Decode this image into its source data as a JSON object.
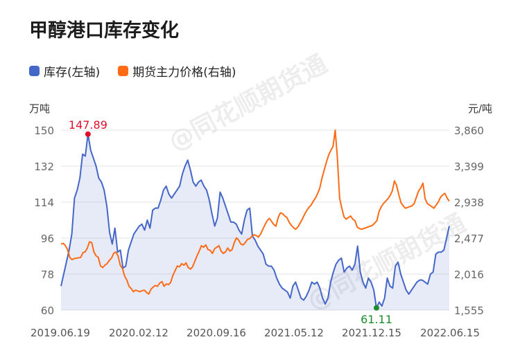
{
  "title": "甲醇港口库存变化",
  "legend": [
    {
      "label": "库存(左轴)",
      "color": "#4466c8"
    },
    {
      "label": "期货主力价格(右轴)",
      "color": "#ff6a14"
    }
  ],
  "watermark": "@同花顺期货通",
  "chart_data": {
    "type": "line",
    "title": "甲醇港口库存变化",
    "left_axis": {
      "unit": "万吨",
      "ticks": [
        60,
        78,
        96,
        114,
        132,
        150
      ],
      "range": [
        60,
        150
      ]
    },
    "right_axis": {
      "unit": "元/吨",
      "ticks": [
        1555,
        2016,
        2477,
        2938,
        3399,
        3860
      ],
      "range": [
        1555,
        3860
      ]
    },
    "x_ticks": [
      "2019.06.19",
      "2020.02.12",
      "2020.09.16",
      "2021.05.12",
      "2021.12.15",
      "2022.06.15"
    ],
    "grid": "horizontal",
    "series": [
      {
        "name": "库存(左轴)",
        "axis": "left",
        "color": "#4466c8",
        "area": true,
        "values": [
          72,
          78,
          84,
          90,
          98,
          116,
          120,
          126,
          138,
          137,
          148,
          140,
          136,
          132,
          126,
          124,
          120,
          112,
          99,
          93,
          101,
          89,
          90,
          81,
          82,
          90,
          94,
          98,
          100,
          102,
          103,
          100,
          105,
          101,
          110,
          111,
          111,
          115,
          120,
          122,
          118,
          116,
          118,
          120,
          122,
          128,
          132,
          135,
          130,
          124,
          122,
          124,
          125,
          122,
          120,
          115,
          108,
          102,
          106,
          119,
          116,
          112,
          108,
          104,
          104,
          103,
          100,
          98,
          105,
          110,
          111,
          97,
          95,
          92,
          90,
          88,
          83,
          82,
          82,
          80,
          76,
          73,
          71,
          70,
          69,
          66,
          72,
          74,
          70,
          66,
          65,
          67,
          70,
          74,
          73,
          74,
          71,
          66,
          63,
          66,
          74,
          79,
          83,
          85,
          86,
          79,
          81,
          82,
          80,
          83,
          92,
          79,
          74,
          71,
          76,
          74,
          70,
          61.11,
          64,
          62,
          66,
          76,
          72,
          71,
          82,
          84,
          78,
          74,
          70,
          68,
          70,
          72,
          74,
          75,
          75,
          74,
          73,
          78,
          79,
          88,
          89,
          89,
          90,
          96,
          102
        ]
      },
      {
        "name": "期货主力价格(右轴)",
        "axis": "right",
        "color": "#ff6a14",
        "area": false,
        "values": [
          2400,
          2410,
          2380,
          2330,
          2230,
          2200,
          2215,
          2220,
          2225,
          2230,
          2290,
          2300,
          2350,
          2430,
          2420,
          2300,
          2250,
          2230,
          2120,
          2100,
          2130,
          2150,
          2190,
          2220,
          2280,
          2300,
          2250,
          2130,
          2090,
          1990,
          1940,
          1860,
          1830,
          1790,
          1810,
          1800,
          1790,
          1805,
          1810,
          1780,
          1760,
          1820,
          1850,
          1870,
          1860,
          1900,
          1920,
          1860,
          1890,
          1880,
          1910,
          2000,
          2060,
          2120,
          2110,
          2150,
          2130,
          2160,
          2100,
          2080,
          2110,
          2180,
          2250,
          2310,
          2380,
          2360,
          2390,
          2330,
          2320,
          2280,
          2340,
          2360,
          2380,
          2310,
          2280,
          2300,
          2350,
          2310,
          2330,
          2420,
          2480,
          2450,
          2400,
          2390,
          2420,
          2460,
          2470,
          2500,
          2520,
          2510,
          2490,
          2530,
          2590,
          2650,
          2700,
          2730,
          2690,
          2650,
          2630,
          2740,
          2800,
          2790,
          2760,
          2740,
          2680,
          2640,
          2610,
          2590,
          2620,
          2670,
          2720,
          2780,
          2830,
          2870,
          2900,
          2950,
          2990,
          3050,
          3120,
          3250,
          3350,
          3450,
          3540,
          3600,
          3650,
          3860,
          3500,
          2990,
          2860,
          2750,
          2720,
          2740,
          2760,
          2720,
          2700,
          2620,
          2600,
          2590,
          2600,
          2610,
          2620,
          2630,
          2640,
          2670,
          2700,
          2820,
          2880,
          2920,
          2950,
          2980,
          3020,
          3080,
          3210,
          3150,
          3030,
          2930,
          2890,
          2860,
          2870,
          2880,
          2890,
          2920,
          3000,
          3080,
          3120,
          3180,
          2980,
          2920,
          2900,
          2880,
          2860,
          2900,
          2940,
          3000,
          3030,
          3050,
          2990,
          2950
        ]
      }
    ],
    "annotations": [
      {
        "label": "147.89",
        "series": "库存(左轴)",
        "type": "max",
        "value": 147.89,
        "color": "#e0102a"
      },
      {
        "label": "61.11",
        "series": "库存(左轴)",
        "type": "min",
        "value": 61.11,
        "color": "#1c8c2c"
      }
    ]
  }
}
